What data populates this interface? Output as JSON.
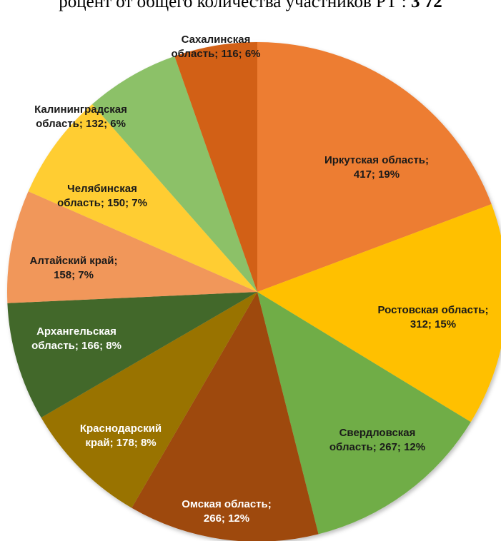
{
  "caption": {
    "text": "роцент от общего количества участников РТ : ",
    "bold": "3 72"
  },
  "chart_data": {
    "type": "pie",
    "title": "",
    "start_angle_deg": 0,
    "direction": "clockwise",
    "slices": [
      {
        "name": "Иркутская область",
        "value": 417,
        "percent": "19%",
        "color": "#ED7D31",
        "label_color": "#1a1a1a",
        "lines": [
          "Иркутская область;",
          "417; 19%"
        ]
      },
      {
        "name": "Ростовская область",
        "value": 312,
        "percent": "15%",
        "color": "#FFC000",
        "label_color": "#1a1a1a",
        "lines": [
          "Ростовская область;",
          "312; 15%"
        ]
      },
      {
        "name": "Свердловская область",
        "value": 267,
        "percent": "12%",
        "color": "#70AD47",
        "label_color": "#1a1a1a",
        "lines": [
          "Свердловская",
          "область; 267; 12%"
        ]
      },
      {
        "name": "Омская область",
        "value": 266,
        "percent": "12%",
        "color": "#9E480E",
        "label_color": "#ffffff",
        "lines": [
          "Омская область;",
          "266; 12%"
        ]
      },
      {
        "name": "Краснодарский край",
        "value": 178,
        "percent": "8%",
        "color": "#997300",
        "label_color": "#ffffff",
        "lines": [
          "Краснодарский",
          "край; 178; 8%"
        ]
      },
      {
        "name": "Архангельская область",
        "value": 166,
        "percent": "8%",
        "color": "#43682B",
        "label_color": "#ffffff",
        "lines": [
          "Архангельская",
          "область; 166; 8%"
        ]
      },
      {
        "name": "Алтайский край",
        "value": 158,
        "percent": "7%",
        "color": "#F1975A",
        "label_color": "#1a1a1a",
        "lines": [
          "Алтайский край;",
          "158; 7%"
        ]
      },
      {
        "name": "Челябинская область",
        "value": 150,
        "percent": "7%",
        "color": "#FFCD33",
        "label_color": "#1a1a1a",
        "lines": [
          "Челябинская",
          "область; 150; 7%"
        ]
      },
      {
        "name": "Калининградская область",
        "value": 132,
        "percent": "6%",
        "color": "#8CC168",
        "label_color": "#1a1a1a",
        "lines": [
          "Калининградская",
          "область; 132; 6%"
        ]
      },
      {
        "name": "Сахалинская область",
        "value": 116,
        "percent": "6%",
        "color": "#D26012",
        "label_color": "#1a1a1a",
        "lines": [
          "Сахалинская",
          "область; 116; 6%"
        ]
      }
    ]
  }
}
